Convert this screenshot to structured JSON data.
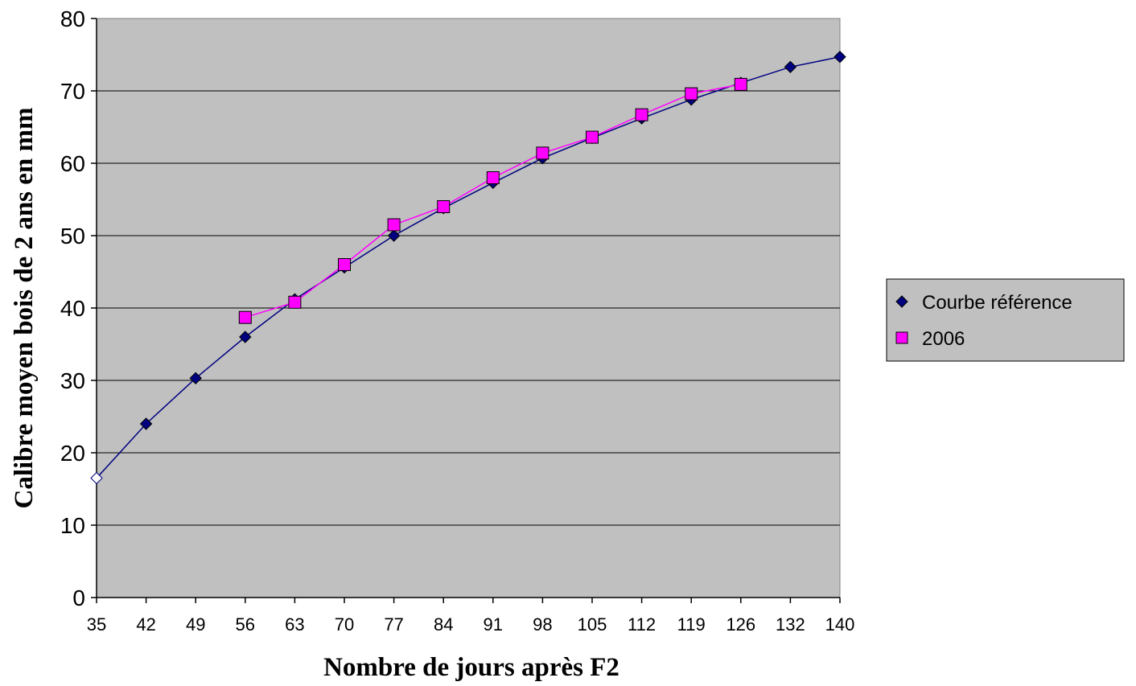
{
  "chart_data": {
    "type": "line",
    "title": "",
    "xlabel": "Nombre de jours après F2",
    "ylabel": "Calibre moyen bois de 2 ans en mm",
    "categories": [
      "35",
      "42",
      "49",
      "56",
      "63",
      "70",
      "77",
      "84",
      "91",
      "98",
      "105",
      "112",
      "119",
      "126",
      "132",
      "140"
    ],
    "ylim": [
      0,
      80
    ],
    "yticks": [
      "0",
      "10",
      "20",
      "30",
      "40",
      "50",
      "60",
      "70",
      "80"
    ],
    "grid": "horizontal",
    "legend_position": "right",
    "plot_background": "#c0c0c0",
    "series": [
      {
        "name": "Courbe référence",
        "marker": "diamond",
        "color": "#000080",
        "marker_color": "#000080",
        "first_marker_hollow": true,
        "values": [
          16.5,
          24.0,
          30.3,
          36.0,
          41.2,
          45.6,
          50.0,
          53.8,
          57.3,
          60.7,
          63.5,
          66.2,
          68.8,
          71.1,
          73.3,
          74.7
        ]
      },
      {
        "name": "2006",
        "marker": "square",
        "color": "#ff00ff",
        "marker_color": "#ff00ff",
        "values": [
          null,
          null,
          null,
          38.7,
          40.8,
          46.0,
          51.5,
          54.0,
          58.0,
          61.4,
          63.6,
          66.7,
          69.6,
          70.9,
          null,
          null
        ]
      }
    ]
  }
}
